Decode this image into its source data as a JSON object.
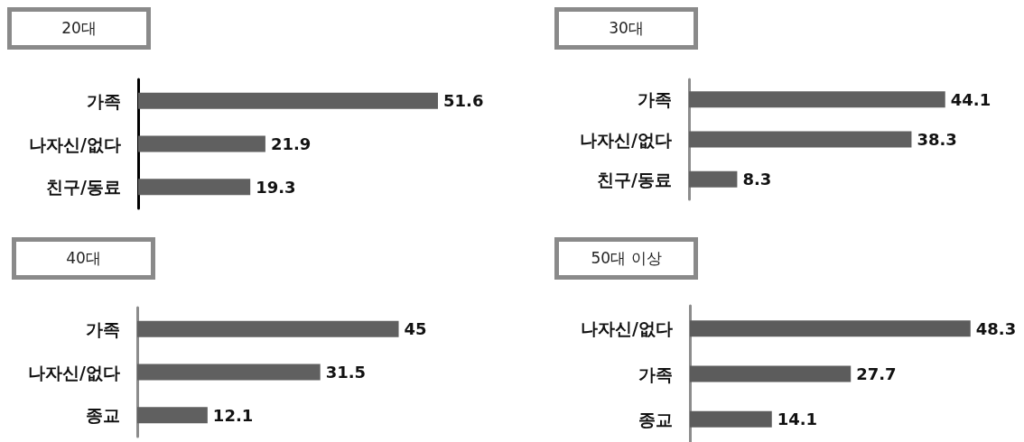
{
  "chart_data": [
    {
      "type": "bar",
      "title": "20대",
      "orientation": "horizontal",
      "categories": [
        "가족",
        "나자신/없다",
        "친구/동료"
      ],
      "values": [
        51.6,
        21.9,
        19.3
      ],
      "color": "#606060",
      "data_labels": true
    },
    {
      "type": "bar",
      "title": "30대",
      "orientation": "horizontal",
      "categories": [
        "가족",
        "나자신/없다",
        "친구/동료"
      ],
      "values": [
        44.1,
        38.3,
        8.3
      ],
      "color": "#606060",
      "data_labels": true
    },
    {
      "type": "bar",
      "title": "40대",
      "orientation": "horizontal",
      "categories": [
        "가족",
        "나자신/없다",
        "종교"
      ],
      "values": [
        45,
        31.5,
        12.1
      ],
      "color": "#606060",
      "data_labels": true
    },
    {
      "type": "bar",
      "title": "50대 이상",
      "orientation": "horizontal",
      "categories": [
        "나자신/없다",
        "가족",
        "종교"
      ],
      "values": [
        48.3,
        27.7,
        14.1
      ],
      "color": "#5c5c5c",
      "data_labels": true
    }
  ]
}
